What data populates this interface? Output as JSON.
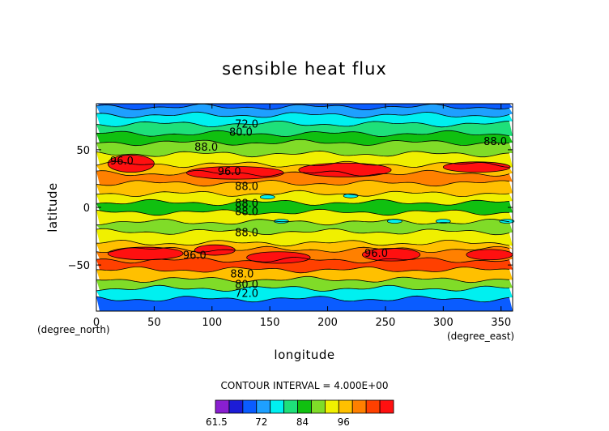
{
  "chart_data": {
    "type": "heatmap",
    "title": "sensible heat flux",
    "xlabel": "longitude",
    "ylabel": "latitude",
    "x_unit_label": "(degree_east)",
    "y_unit_label": "(degree_north)",
    "xlim": [
      0,
      360
    ],
    "ylim": [
      -90,
      90
    ],
    "x_ticks": [
      0,
      50,
      100,
      150,
      200,
      250,
      300,
      350
    ],
    "y_ticks": [
      -50,
      0,
      50
    ],
    "contour_interval_text": "CONTOUR INTERVAL = 4.000E+00",
    "colorbar": {
      "tick_labels": [
        "61.5",
        "72",
        "84",
        "96"
      ],
      "colors": [
        "#8a1fd0",
        "#1c1cd6",
        "#0a5cff",
        "#1ea0ff",
        "#00f0f0",
        "#1ee07a",
        "#10c010",
        "#80dc28",
        "#f0f000",
        "#ffc000",
        "#ff8000",
        "#ff4000",
        "#ff1010"
      ]
    },
    "contour_labels": [
      {
        "text": "72.0",
        "lon": 130,
        "lat": 72
      },
      {
        "text": "80.0",
        "lon": 125,
        "lat": 65
      },
      {
        "text": "88.0",
        "lon": 95,
        "lat": 52
      },
      {
        "text": "88.0",
        "lon": 345,
        "lat": 57
      },
      {
        "text": "96.0",
        "lon": 22,
        "lat": 40
      },
      {
        "text": "96.0",
        "lon": 115,
        "lat": 31
      },
      {
        "text": "88.0",
        "lon": 130,
        "lat": 18
      },
      {
        "text": "88.0",
        "lon": 130,
        "lat": 3
      },
      {
        "text": "88.0",
        "lon": 130,
        "lat": -4
      },
      {
        "text": "88.0",
        "lon": 130,
        "lat": -22
      },
      {
        "text": "96.0",
        "lon": 85,
        "lat": -42
      },
      {
        "text": "96.0",
        "lon": 242,
        "lat": -40
      },
      {
        "text": "88.0",
        "lon": 126,
        "lat": -58
      },
      {
        "text": "80.0",
        "lon": 130,
        "lat": -67
      },
      {
        "text": "72.0",
        "lon": 130,
        "lat": -75
      }
    ]
  }
}
